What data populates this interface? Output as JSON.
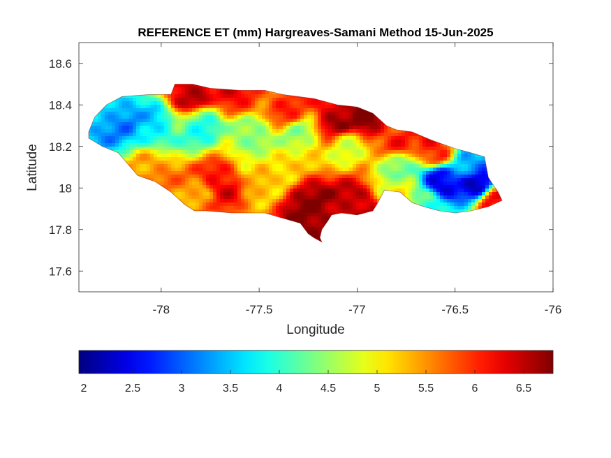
{
  "chart_data": {
    "type": "heatmap",
    "title": "REFERENCE ET (mm) Hargreaves-Samani Method  15-Jun-2025",
    "xlabel": "Longitude",
    "ylabel": "Latitude",
    "xlim": [
      -78.42,
      -76.0
    ],
    "ylim": [
      17.5,
      18.7
    ],
    "x_ticks": [
      -78,
      -77.5,
      -77,
      -76.5,
      -76
    ],
    "x_tick_labels": [
      "-78",
      "-77.5",
      "-77",
      "-76.5",
      "-76"
    ],
    "y_ticks": [
      17.6,
      17.8,
      18,
      18.2,
      18.4,
      18.6
    ],
    "y_tick_labels": [
      "17.6",
      "17.8",
      "18",
      "18.2",
      "18.4",
      "18.6"
    ],
    "grid": false,
    "colormap": "jet",
    "colorbar": {
      "location": "bottom",
      "clim": [
        1.95,
        6.8
      ],
      "ticks": [
        2,
        2.5,
        3,
        3.5,
        4,
        4.5,
        5,
        5.5,
        6,
        6.5
      ],
      "tick_labels": [
        "2",
        "2.5",
        "3",
        "3.5",
        "4",
        "4.5",
        "5",
        "5.5",
        "6",
        "6.5"
      ]
    },
    "outline": [
      [
        -78.37,
        18.27
      ],
      [
        -78.34,
        18.34
      ],
      [
        -78.28,
        18.4
      ],
      [
        -78.2,
        18.44
      ],
      [
        -78.06,
        18.45
      ],
      [
        -77.95,
        18.45
      ],
      [
        -77.93,
        18.5
      ],
      [
        -77.84,
        18.5
      ],
      [
        -77.75,
        18.48
      ],
      [
        -77.6,
        18.47
      ],
      [
        -77.47,
        18.47
      ],
      [
        -77.38,
        18.45
      ],
      [
        -77.22,
        18.43
      ],
      [
        -77.1,
        18.4
      ],
      [
        -77.0,
        18.39
      ],
      [
        -76.92,
        18.36
      ],
      [
        -76.85,
        18.3
      ],
      [
        -76.8,
        18.28
      ],
      [
        -76.72,
        18.27
      ],
      [
        -76.62,
        18.23
      ],
      [
        -76.5,
        18.19
      ],
      [
        -76.42,
        18.17
      ],
      [
        -76.35,
        18.15
      ],
      [
        -76.33,
        18.05
      ],
      [
        -76.28,
        17.98
      ],
      [
        -76.26,
        17.94
      ],
      [
        -76.33,
        17.91
      ],
      [
        -76.42,
        17.89
      ],
      [
        -76.5,
        17.88
      ],
      [
        -76.58,
        17.89
      ],
      [
        -76.66,
        17.91
      ],
      [
        -76.72,
        17.93
      ],
      [
        -76.78,
        17.98
      ],
      [
        -76.86,
        17.99
      ],
      [
        -76.9,
        17.92
      ],
      [
        -76.92,
        17.89
      ],
      [
        -77.0,
        17.87
      ],
      [
        -77.08,
        17.88
      ],
      [
        -77.13,
        17.87
      ],
      [
        -77.15,
        17.84
      ],
      [
        -77.18,
        17.8
      ],
      [
        -77.19,
        17.76
      ],
      [
        -77.18,
        17.74
      ],
      [
        -77.22,
        17.76
      ],
      [
        -77.25,
        17.78
      ],
      [
        -77.29,
        17.83
      ],
      [
        -77.4,
        17.86
      ],
      [
        -77.47,
        17.88
      ],
      [
        -77.64,
        17.88
      ],
      [
        -77.77,
        17.89
      ],
      [
        -77.83,
        17.89
      ],
      [
        -77.88,
        17.92
      ],
      [
        -77.95,
        17.98
      ],
      [
        -78.03,
        18.03
      ],
      [
        -78.12,
        18.06
      ],
      [
        -78.22,
        18.17
      ],
      [
        -78.3,
        18.2
      ],
      [
        -78.37,
        18.24
      ]
    ],
    "field_centers": [
      {
        "x": -78.2,
        "y": 18.31,
        "value": 3.3
      },
      {
        "x": -78.05,
        "y": 18.3,
        "value": 3.6
      },
      {
        "x": -77.8,
        "y": 18.3,
        "value": 4.0
      },
      {
        "x": -77.55,
        "y": 18.27,
        "value": 4.3
      },
      {
        "x": -77.3,
        "y": 18.25,
        "value": 4.6
      },
      {
        "x": -77.05,
        "y": 18.2,
        "value": 4.9
      },
      {
        "x": -76.8,
        "y": 18.1,
        "value": 4.4
      },
      {
        "x": -77.85,
        "y": 18.45,
        "value": 6.6
      },
      {
        "x": -77.6,
        "y": 18.43,
        "value": 6.2
      },
      {
        "x": -77.35,
        "y": 18.37,
        "value": 5.9
      },
      {
        "x": -77.1,
        "y": 18.33,
        "value": 6.6
      },
      {
        "x": -76.95,
        "y": 18.33,
        "value": 6.7
      },
      {
        "x": -76.8,
        "y": 18.23,
        "value": 6.0
      },
      {
        "x": -76.6,
        "y": 18.17,
        "value": 6.2
      },
      {
        "x": -77.25,
        "y": 17.94,
        "value": 6.6
      },
      {
        "x": -77.22,
        "y": 17.82,
        "value": 6.8
      },
      {
        "x": -77.0,
        "y": 17.92,
        "value": 6.6
      },
      {
        "x": -77.7,
        "y": 18.02,
        "value": 6.3
      },
      {
        "x": -77.8,
        "y": 17.95,
        "value": 5.5
      },
      {
        "x": -78.05,
        "y": 18.08,
        "value": 5.6
      },
      {
        "x": -77.5,
        "y": 18.05,
        "value": 5.2
      },
      {
        "x": -77.4,
        "y": 18.1,
        "value": 5.0
      },
      {
        "x": -76.8,
        "y": 17.99,
        "value": 5.0
      },
      {
        "x": -76.58,
        "y": 18.04,
        "value": 2.3
      },
      {
        "x": -76.39,
        "y": 18.02,
        "value": 2.4
      },
      {
        "x": -76.42,
        "y": 18.1,
        "value": 3.2
      },
      {
        "x": -76.65,
        "y": 17.92,
        "value": 4.2
      },
      {
        "x": -76.3,
        "y": 17.93,
        "value": 6.0
      }
    ]
  }
}
